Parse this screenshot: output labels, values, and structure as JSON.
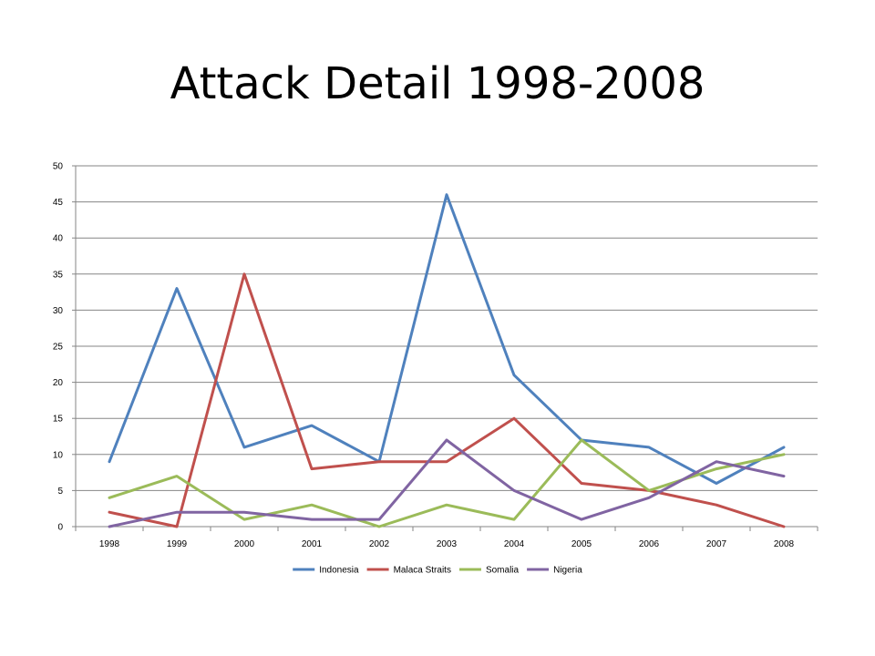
{
  "slide": {
    "title": "Attack Detail 1998-2008"
  },
  "chart_data": {
    "type": "line",
    "title": "",
    "xlabel": "",
    "ylabel": "",
    "categories": [
      "1998",
      "1999",
      "2000",
      "2001",
      "2002",
      "2003",
      "2004",
      "2005",
      "2006",
      "2007",
      "2008"
    ],
    "ylim": [
      0,
      50
    ],
    "yticks": [
      0,
      5,
      10,
      15,
      20,
      25,
      30,
      35,
      40,
      45,
      50
    ],
    "grid": true,
    "legend_position": "bottom",
    "series": [
      {
        "name": "Indonesia",
        "color": "#4F81BD",
        "values": [
          9,
          33,
          11,
          14,
          9,
          46,
          21,
          12,
          11,
          6,
          11
        ]
      },
      {
        "name": "Malaca Straits",
        "color": "#C0504D",
        "values": [
          2,
          0,
          35,
          8,
          9,
          9,
          15,
          6,
          5,
          3,
          0
        ]
      },
      {
        "name": "Somalia",
        "color": "#9BBB59",
        "values": [
          4,
          7,
          1,
          3,
          0,
          3,
          1,
          12,
          5,
          8,
          10
        ]
      },
      {
        "name": "Nigeria",
        "color": "#8064A2",
        "values": [
          0,
          2,
          2,
          1,
          1,
          12,
          5,
          1,
          4,
          9,
          7
        ]
      }
    ]
  }
}
